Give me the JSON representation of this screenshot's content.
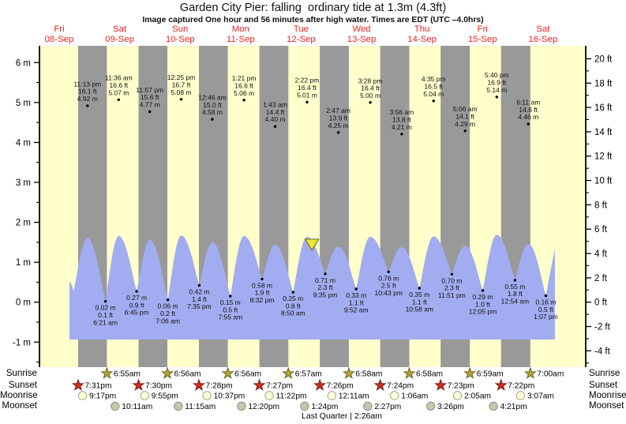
{
  "header": {
    "title": "Garden City Pier: falling  ordinary tide at 1.3m (4.3ft)",
    "subtitle": "Image captured One hour and 56 minutes after high water. Times are EDT (UTC –4.0hrs)"
  },
  "colors": {
    "background": "#ffffff",
    "plot_day": "#ffffcc",
    "plot_night": "#999999",
    "tide_fill": "#a2acf0",
    "date_red": "#ee2222",
    "annotation": "#111111",
    "sunrise_star": "#b3a437",
    "sunset_star": "#c9301f",
    "moonrise_fill": "#ffffd6",
    "moonset_fill": "#c6c6ad",
    "marker_fill": "#e8e839"
  },
  "chart_data": {
    "type": "area",
    "title": "Garden City Pier tide forecast",
    "y_axis_left": {
      "unit": "m",
      "ticks": [
        6,
        5,
        4,
        3,
        2,
        1,
        0,
        -1
      ]
    },
    "y_axis_right": {
      "unit": "ft",
      "ticks": [
        20,
        18,
        16,
        14,
        12,
        10,
        8,
        6,
        4,
        2,
        0,
        -2,
        -4
      ]
    },
    "days": [
      {
        "weekday": "Fri",
        "date": "08-Sep"
      },
      {
        "weekday": "Sat",
        "date": "09-Sep"
      },
      {
        "weekday": "Sun",
        "date": "10-Sep"
      },
      {
        "weekday": "Mon",
        "date": "11-Sep"
      },
      {
        "weekday": "Tue",
        "date": "12-Sep"
      },
      {
        "weekday": "Wed",
        "date": "13-Sep"
      },
      {
        "weekday": "Thu",
        "date": "14-Sep"
      },
      {
        "weekday": "Fri",
        "date": "15-Sep"
      },
      {
        "weekday": "Sat",
        "date": "16-Sep"
      }
    ],
    "tide_events": [
      {
        "kind": "high",
        "day": 0,
        "time": "11:13 pm",
        "ft": 16.1,
        "m": 4.92
      },
      {
        "kind": "low",
        "day": 1,
        "time": "6:21 am",
        "ft": 0.1,
        "m": 0.02
      },
      {
        "kind": "high",
        "day": 1,
        "time": "11:36 am",
        "ft": 16.6,
        "m": 5.07
      },
      {
        "kind": "low",
        "day": 1,
        "time": "6:45 pm",
        "ft": 0.9,
        "m": 0.27
      },
      {
        "kind": "high",
        "day": 1,
        "time": "11:57 pm",
        "ft": 15.6,
        "m": 4.77
      },
      {
        "kind": "low",
        "day": 2,
        "time": "7:06 am",
        "ft": 0.2,
        "m": 0.06
      },
      {
        "kind": "high",
        "day": 2,
        "time": "12:25 pm",
        "ft": 16.7,
        "m": 5.08
      },
      {
        "kind": "low",
        "day": 2,
        "time": "7:35 pm",
        "ft": 1.4,
        "m": 0.42
      },
      {
        "kind": "high",
        "day": 3,
        "time": "12:46 am",
        "ft": 15.0,
        "m": 4.58
      },
      {
        "kind": "low",
        "day": 3,
        "time": "7:55 am",
        "ft": 0.5,
        "m": 0.15
      },
      {
        "kind": "high",
        "day": 3,
        "time": "1:21 pm",
        "ft": 16.6,
        "m": 5.06
      },
      {
        "kind": "low",
        "day": 3,
        "time": "8:32 pm",
        "ft": 1.9,
        "m": 0.58
      },
      {
        "kind": "high",
        "day": 4,
        "time": "1:43 am",
        "ft": 14.4,
        "m": 4.4
      },
      {
        "kind": "low",
        "day": 4,
        "time": "8:50 am",
        "ft": 0.8,
        "m": 0.25
      },
      {
        "kind": "high",
        "day": 4,
        "time": "2:22 pm",
        "ft": 16.4,
        "m": 5.01
      },
      {
        "kind": "low",
        "day": 4,
        "time": "9:35 pm",
        "ft": 2.3,
        "m": 0.71
      },
      {
        "kind": "high",
        "day": 5,
        "time": "2:47 am",
        "ft": 13.9,
        "m": 4.25
      },
      {
        "kind": "low",
        "day": 5,
        "time": "9:52 am",
        "ft": 1.1,
        "m": 0.33
      },
      {
        "kind": "high",
        "day": 5,
        "time": "3:28 pm",
        "ft": 16.4,
        "m": 5.0
      },
      {
        "kind": "low",
        "day": 5,
        "time": "10:43 pm",
        "ft": 2.5,
        "m": 0.76
      },
      {
        "kind": "high",
        "day": 6,
        "time": "3:56 am",
        "ft": 13.8,
        "m": 4.21
      },
      {
        "kind": "low",
        "day": 6,
        "time": "10:58 am",
        "ft": 1.1,
        "m": 0.35
      },
      {
        "kind": "high",
        "day": 6,
        "time": "4:35 pm",
        "ft": 16.5,
        "m": 5.04
      },
      {
        "kind": "low",
        "day": 6,
        "time": "11:51 pm",
        "ft": 2.3,
        "m": 0.7
      },
      {
        "kind": "high",
        "day": 7,
        "time": "5:06 am",
        "ft": 14.1,
        "m": 4.29
      },
      {
        "kind": "low",
        "day": 7,
        "time": "12:05 pm",
        "ft": 1.0,
        "m": 0.29
      },
      {
        "kind": "high",
        "day": 7,
        "time": "5:40 pm",
        "ft": 16.9,
        "m": 5.14
      },
      {
        "kind": "low",
        "day": 8,
        "time": "12:54 am",
        "ft": 1.8,
        "m": 0.55
      },
      {
        "kind": "high",
        "day": 8,
        "time": "6:11 am",
        "ft": 14.6,
        "m": 4.46
      },
      {
        "kind": "low",
        "day": 8,
        "time": "1:07 pm",
        "ft": 0.5,
        "m": 0.16
      }
    ],
    "current_marker": {
      "day": 4,
      "time": "4:18 pm",
      "m": 1.3
    },
    "sun_moon": {
      "labels": [
        "Sunrise",
        "Sunset",
        "Moonrise",
        "Moonset"
      ],
      "sunrise": [
        {
          "day": 1,
          "time": "6:55am"
        },
        {
          "day": 2,
          "time": "6:56am"
        },
        {
          "day": 3,
          "time": "6:56am"
        },
        {
          "day": 4,
          "time": "6:57am"
        },
        {
          "day": 5,
          "time": "6:58am"
        },
        {
          "day": 6,
          "time": "6:58am"
        },
        {
          "day": 7,
          "time": "6:59am"
        },
        {
          "day": 8,
          "time": "7:00am"
        }
      ],
      "sunset": [
        {
          "day": 0,
          "time": "7:31pm"
        },
        {
          "day": 1,
          "time": "7:30pm"
        },
        {
          "day": 2,
          "time": "7:28pm"
        },
        {
          "day": 3,
          "time": "7:27pm"
        },
        {
          "day": 4,
          "time": "7:26pm"
        },
        {
          "day": 5,
          "time": "7:24pm"
        },
        {
          "day": 6,
          "time": "7:23pm"
        },
        {
          "day": 7,
          "time": "7:22pm"
        }
      ],
      "moonrise": [
        {
          "day": 0,
          "time": "9:17pm"
        },
        {
          "day": 1,
          "time": "9:55pm"
        },
        {
          "day": 2,
          "time": "10:37pm"
        },
        {
          "day": 3,
          "time": "11:22pm"
        },
        {
          "day": 5,
          "time": "12:11am"
        },
        {
          "day": 6,
          "time": "1:06am"
        },
        {
          "day": 7,
          "time": "2:05am"
        },
        {
          "day": 8,
          "time": "3:07am"
        }
      ],
      "moonset": [
        {
          "day": 1,
          "time": "10:11am"
        },
        {
          "day": 2,
          "time": "11:15am"
        },
        {
          "day": 3,
          "time": "12:20pm"
        },
        {
          "day": 4,
          "time": "1:24pm"
        },
        {
          "day": 5,
          "time": "2:27pm"
        },
        {
          "day": 6,
          "time": "3:26pm"
        },
        {
          "day": 7,
          "time": "4:21pm"
        }
      ],
      "moon_phase": "Last Quarter | 2:26am"
    }
  }
}
